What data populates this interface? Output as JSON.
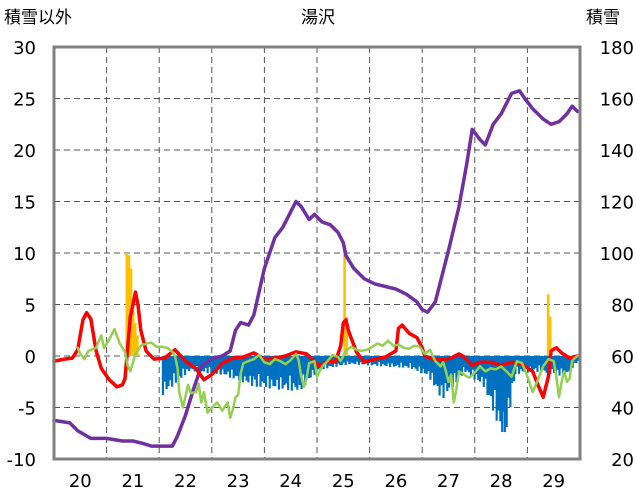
{
  "chart_data": {
    "type": "line",
    "title": "湯沢",
    "left_axis_label": "積雪以外",
    "right_axis_label": "積雪",
    "x_ticks": [
      "20",
      "21",
      "22",
      "23",
      "24",
      "25",
      "26",
      "27",
      "28",
      "29"
    ],
    "x_range": [
      19.5,
      29.5
    ],
    "y_left_ticks": [
      "30",
      "25",
      "20",
      "15",
      "10",
      "5",
      "0",
      "-5",
      "-10"
    ],
    "y_left_range": [
      -10,
      30
    ],
    "y_right_ticks": [
      "180",
      "160",
      "140",
      "120",
      "100",
      "80",
      "60",
      "40",
      "20"
    ],
    "y_right_range": [
      20,
      180
    ],
    "grid": "vertical dashed + horizontal dashed",
    "colors": {
      "snow_depth": "#7030a0",
      "temperature": "#ff0000",
      "secondary_line": "#92d050",
      "positive_bars": "#ffc000",
      "negative_bars": "#0070c0",
      "frame": "#808080"
    },
    "series": [
      {
        "axis": "right",
        "color": "#7030a0",
        "points": [
          [
            19.5,
            35
          ],
          [
            19.8,
            34
          ],
          [
            19.95,
            31
          ],
          [
            20.2,
            28
          ],
          [
            20.5,
            28
          ],
          [
            20.8,
            27
          ],
          [
            21.0,
            27
          ],
          [
            21.2,
            26
          ],
          [
            21.35,
            25
          ],
          [
            21.6,
            25
          ],
          [
            21.75,
            25
          ],
          [
            21.85,
            29
          ],
          [
            22.0,
            37
          ],
          [
            22.15,
            47
          ],
          [
            22.3,
            56
          ],
          [
            22.5,
            59
          ],
          [
            22.7,
            60
          ],
          [
            22.85,
            62
          ],
          [
            22.95,
            70
          ],
          [
            23.05,
            73
          ],
          [
            23.2,
            72
          ],
          [
            23.3,
            76
          ],
          [
            23.5,
            94
          ],
          [
            23.7,
            106
          ],
          [
            23.85,
            110
          ],
          [
            24.0,
            116
          ],
          [
            24.1,
            120
          ],
          [
            24.2,
            118
          ],
          [
            24.35,
            113
          ],
          [
            24.45,
            115
          ],
          [
            24.6,
            112
          ],
          [
            24.75,
            111
          ],
          [
            24.9,
            108
          ],
          [
            25.0,
            104
          ],
          [
            25.05,
            99
          ],
          [
            25.2,
            94
          ],
          [
            25.4,
            90
          ],
          [
            25.6,
            88
          ],
          [
            25.8,
            87
          ],
          [
            26.0,
            86
          ],
          [
            26.2,
            84
          ],
          [
            26.4,
            81
          ],
          [
            26.5,
            78
          ],
          [
            26.6,
            77
          ],
          [
            26.75,
            81
          ],
          [
            27.0,
            101
          ],
          [
            27.2,
            118
          ],
          [
            27.35,
            135
          ],
          [
            27.45,
            148
          ],
          [
            27.6,
            144
          ],
          [
            27.7,
            142
          ],
          [
            27.85,
            150
          ],
          [
            28.0,
            154
          ],
          [
            28.2,
            162
          ],
          [
            28.35,
            163
          ],
          [
            28.45,
            160
          ],
          [
            28.6,
            156
          ],
          [
            28.8,
            152
          ],
          [
            28.95,
            150
          ],
          [
            29.1,
            151
          ],
          [
            29.25,
            154
          ],
          [
            29.35,
            157
          ],
          [
            29.45,
            155
          ]
        ]
      },
      {
        "axis": "left",
        "color": "#ff0000",
        "points": [
          [
            19.5,
            -0.5
          ],
          [
            19.7,
            -0.3
          ],
          [
            19.85,
            -0.2
          ],
          [
            19.95,
            0.6
          ],
          [
            20.05,
            3.5
          ],
          [
            20.12,
            4.2
          ],
          [
            20.2,
            3.6
          ],
          [
            20.3,
            0.5
          ],
          [
            20.4,
            -1.2
          ],
          [
            20.55,
            -2.3
          ],
          [
            20.7,
            -3.0
          ],
          [
            20.8,
            -2.8
          ],
          [
            20.85,
            -2.2
          ],
          [
            20.95,
            3.8
          ],
          [
            21.05,
            6.2
          ],
          [
            21.1,
            4.8
          ],
          [
            21.15,
            2.5
          ],
          [
            21.25,
            0.5
          ],
          [
            21.4,
            -0.3
          ],
          [
            21.6,
            -0.2
          ],
          [
            21.8,
            0.6
          ],
          [
            22.0,
            -0.5
          ],
          [
            22.2,
            -1.2
          ],
          [
            22.35,
            -2.3
          ],
          [
            22.5,
            -1.8
          ],
          [
            22.7,
            -0.7
          ],
          [
            22.9,
            -0.2
          ],
          [
            23.1,
            -0.1
          ],
          [
            23.3,
            0.3
          ],
          [
            23.5,
            -0.3
          ],
          [
            23.7,
            -0.2
          ],
          [
            23.9,
            0.0
          ],
          [
            24.1,
            0.4
          ],
          [
            24.3,
            0.2
          ],
          [
            24.45,
            -0.5
          ],
          [
            24.55,
            -1.0
          ],
          [
            24.7,
            -0.5
          ],
          [
            24.85,
            -0.6
          ],
          [
            24.95,
            1.0
          ],
          [
            25.0,
            3.2
          ],
          [
            25.05,
            3.5
          ],
          [
            25.1,
            2.4
          ],
          [
            25.25,
            0.4
          ],
          [
            25.4,
            -0.6
          ],
          [
            25.6,
            -0.3
          ],
          [
            25.8,
            -0.1
          ],
          [
            26.0,
            0.5
          ],
          [
            26.05,
            2.7
          ],
          [
            26.12,
            3.0
          ],
          [
            26.25,
            2.2
          ],
          [
            26.4,
            1.8
          ],
          [
            26.5,
            0.8
          ],
          [
            26.55,
            0.0
          ],
          [
            26.7,
            -0.3
          ],
          [
            26.9,
            -0.4
          ],
          [
            27.05,
            -0.2
          ],
          [
            27.2,
            0.2
          ],
          [
            27.3,
            -0.1
          ],
          [
            27.45,
            -0.9
          ],
          [
            27.6,
            -0.6
          ],
          [
            27.8,
            -0.6
          ],
          [
            28.0,
            -0.9
          ],
          [
            28.2,
            -0.6
          ],
          [
            28.4,
            -0.8
          ],
          [
            28.6,
            -1.5
          ],
          [
            28.7,
            -2.8
          ],
          [
            28.8,
            -4.0
          ],
          [
            28.9,
            -2.0
          ],
          [
            28.95,
            0.5
          ],
          [
            29.05,
            0.8
          ],
          [
            29.15,
            0.3
          ],
          [
            29.3,
            -0.2
          ],
          [
            29.45,
            0.0
          ]
        ]
      },
      {
        "axis": "left",
        "color": "#92d050",
        "points": [
          [
            19.95,
            0.8
          ],
          [
            20.0,
            0.2
          ],
          [
            20.08,
            -0.3
          ],
          [
            20.15,
            0.5
          ],
          [
            20.3,
            0.8
          ],
          [
            20.4,
            2.0
          ],
          [
            20.45,
            0.8
          ],
          [
            20.55,
            1.6
          ],
          [
            20.65,
            2.6
          ],
          [
            20.75,
            1.2
          ],
          [
            20.85,
            0.4
          ],
          [
            20.9,
            -0.9
          ],
          [
            20.95,
            -1.5
          ],
          [
            21.05,
            0.2
          ],
          [
            21.15,
            1.0
          ],
          [
            21.25,
            1.2
          ],
          [
            21.35,
            1.3
          ],
          [
            21.45,
            0.9
          ],
          [
            21.55,
            0.9
          ],
          [
            21.65,
            0.8
          ],
          [
            21.75,
            0.4
          ],
          [
            21.8,
            0.0
          ],
          [
            21.85,
            -1.2
          ],
          [
            21.88,
            -3.5
          ],
          [
            21.95,
            -5.0
          ],
          [
            22.05,
            -2.8
          ],
          [
            22.1,
            -3.6
          ],
          [
            22.2,
            -3.5
          ],
          [
            22.25,
            -2.7
          ],
          [
            22.3,
            -4.5
          ],
          [
            22.35,
            -3.5
          ],
          [
            22.42,
            -5.5
          ],
          [
            22.5,
            -5.0
          ],
          [
            22.6,
            -4.5
          ],
          [
            22.7,
            -5.3
          ],
          [
            22.8,
            -4.5
          ],
          [
            22.85,
            -6.0
          ],
          [
            22.9,
            -5.2
          ],
          [
            22.95,
            -4.0
          ],
          [
            23.0,
            -3.8
          ],
          [
            23.05,
            -1.7
          ],
          [
            23.1,
            -0.7
          ],
          [
            23.2,
            -0.5
          ],
          [
            23.3,
            -0.3
          ],
          [
            23.4,
            0.1
          ],
          [
            23.5,
            -0.6
          ],
          [
            23.6,
            -0.8
          ],
          [
            23.7,
            -0.3
          ],
          [
            23.8,
            -0.5
          ],
          [
            23.9,
            -0.8
          ],
          [
            24.0,
            -0.4
          ],
          [
            24.1,
            0.2
          ],
          [
            24.15,
            -0.4
          ],
          [
            24.2,
            -2.0
          ],
          [
            24.25,
            -3.0
          ],
          [
            24.3,
            -2.2
          ],
          [
            24.35,
            -0.7
          ],
          [
            24.45,
            -0.5
          ],
          [
            24.5,
            -2.0
          ],
          [
            24.6,
            -1.0
          ],
          [
            24.7,
            -0.5
          ],
          [
            24.8,
            0.1
          ],
          [
            24.9,
            -0.1
          ],
          [
            24.95,
            -0.5
          ],
          [
            25.05,
            0.5
          ],
          [
            25.15,
            0.9
          ],
          [
            25.25,
            0.6
          ],
          [
            25.35,
            0.5
          ],
          [
            25.45,
            0.6
          ],
          [
            25.55,
            0.9
          ],
          [
            25.65,
            1.2
          ],
          [
            25.75,
            1.0
          ],
          [
            25.85,
            1.5
          ],
          [
            25.95,
            1.0
          ],
          [
            26.05,
            1.1
          ],
          [
            26.15,
            0.8
          ],
          [
            26.25,
            0.7
          ],
          [
            26.35,
            1.0
          ],
          [
            26.45,
            0.9
          ],
          [
            26.55,
            0.2
          ],
          [
            26.65,
            0.6
          ],
          [
            26.7,
            0.0
          ],
          [
            26.75,
            -0.5
          ],
          [
            26.85,
            -1.0
          ],
          [
            26.9,
            -0.6
          ],
          [
            26.95,
            -1.5
          ],
          [
            27.0,
            -2.5
          ],
          [
            27.05,
            -1.8
          ],
          [
            27.1,
            -4.5
          ],
          [
            27.15,
            -3.2
          ],
          [
            27.2,
            -1.5
          ],
          [
            27.3,
            -1.8
          ],
          [
            27.35,
            -2.0
          ],
          [
            27.4,
            -2.1
          ],
          [
            27.5,
            -1.6
          ],
          [
            27.6,
            -1.0
          ],
          [
            27.7,
            -1.5
          ],
          [
            27.8,
            -1.2
          ],
          [
            27.9,
            -1.3
          ],
          [
            28.0,
            -1.0
          ],
          [
            28.1,
            -1.5
          ],
          [
            28.2,
            -2.0
          ],
          [
            28.3,
            -0.5
          ],
          [
            28.4,
            -0.7
          ],
          [
            28.5,
            -2.0
          ],
          [
            28.6,
            -3.5
          ],
          [
            28.7,
            -2.3
          ],
          [
            28.8,
            -1.0
          ],
          [
            28.9,
            -0.3
          ],
          [
            29.0,
            -0.5
          ],
          [
            29.05,
            -2.0
          ],
          [
            29.1,
            -4.0
          ],
          [
            29.15,
            -2.5
          ],
          [
            29.2,
            -1.5
          ],
          [
            29.25,
            -2.5
          ],
          [
            29.3,
            -2.2
          ],
          [
            29.35,
            -0.5
          ],
          [
            29.4,
            -0.2
          ],
          [
            29.45,
            0.0
          ]
        ]
      }
    ],
    "bars_positive": [
      [
        20.86,
        10.0
      ],
      [
        20.9,
        9.8
      ],
      [
        20.94,
        8.5
      ],
      [
        20.98,
        4.5
      ],
      [
        21.02,
        3.2
      ],
      [
        21.06,
        2.0
      ],
      [
        25.0,
        10.0
      ],
      [
        25.04,
        3.8
      ],
      [
        28.87,
        6.0
      ],
      [
        28.91,
        3.8
      ]
    ],
    "bars_negative_range": [
      [
        21.55,
        -3.8
      ],
      [
        22.05,
        -1.5
      ],
      [
        22.65,
        -1.8
      ],
      [
        23.3,
        -3.0
      ],
      [
        24.15,
        -3.5
      ],
      [
        24.5,
        -1.4
      ],
      [
        25.1,
        -0.8
      ],
      [
        26.25,
        -1.2
      ],
      [
        26.6,
        -2.0
      ],
      [
        26.85,
        -4.3
      ],
      [
        27.3,
        -1.6
      ],
      [
        27.65,
        -3.0
      ],
      [
        28.05,
        -8.5
      ],
      [
        28.25,
        -1.8
      ],
      [
        28.6,
        -1.5
      ],
      [
        29.2,
        -2.0
      ],
      [
        29.45,
        -0.5
      ]
    ]
  }
}
